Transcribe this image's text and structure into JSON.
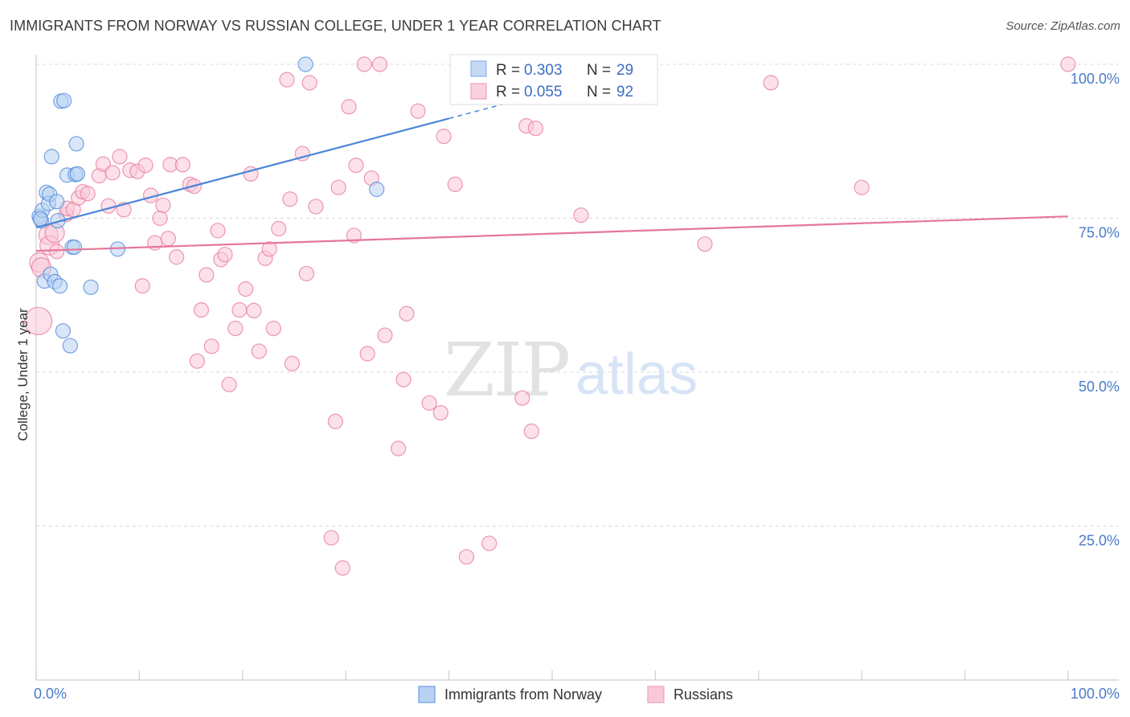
{
  "header": {
    "title": "IMMIGRANTS FROM NORWAY VS RUSSIAN COLLEGE, UNDER 1 YEAR CORRELATION CHART",
    "source": "Source: ZipAtlas.com"
  },
  "watermark": {
    "zip": "ZIP",
    "atlas": "atlas"
  },
  "legend": {
    "r_label": "R =",
    "n_label": "N =",
    "series": [
      {
        "r": "0.303",
        "n": "29",
        "color": "#8fb3e8",
        "fill": "#c5d9f5"
      },
      {
        "r": "0.055",
        "n": "92",
        "color": "#f0a0bb",
        "fill": "#fbd0de"
      }
    ]
  },
  "chart_data": {
    "type": "scatter",
    "title": "IMMIGRANTS FROM NORWAY VS RUSSIAN COLLEGE, UNDER 1 YEAR CORRELATION CHART",
    "xlabel": "",
    "ylabel": "College, Under 1 year",
    "xlim": [
      0,
      100
    ],
    "ylim": [
      0,
      100
    ],
    "x_tick_labels": [
      "0.0%",
      "100.0%"
    ],
    "y_tick_labels": [
      "100.0%",
      "75.0%",
      "50.0%",
      "25.0%"
    ],
    "y_ticks": [
      100,
      75,
      50,
      25
    ],
    "grid": true,
    "legend_position": "top-center",
    "series": [
      {
        "name": "Immigrants from Norway",
        "color": "#4a86d8",
        "fill": "#b8d1f3",
        "trend": {
          "x0": 0,
          "y0": 73.5,
          "x1": 40,
          "y1": 91.2,
          "dash_to_x": 47,
          "dash_to_y": 94.3
        },
        "points": [
          [
            0.3,
            75.3
          ],
          [
            0.5,
            74.6
          ],
          [
            0.6,
            76.3
          ],
          [
            0.8,
            64.8
          ],
          [
            1.0,
            79.2
          ],
          [
            1.2,
            77.4
          ],
          [
            1.3,
            78.9
          ],
          [
            1.4,
            65.9
          ],
          [
            1.5,
            85.0
          ],
          [
            1.8,
            64.7
          ],
          [
            2.0,
            77.7
          ],
          [
            2.1,
            74.6
          ],
          [
            2.3,
            64.0
          ],
          [
            2.4,
            94.0
          ],
          [
            2.7,
            94.1
          ],
          [
            2.6,
            56.7
          ],
          [
            3.0,
            82.0
          ],
          [
            3.3,
            54.3
          ],
          [
            3.5,
            70.3
          ],
          [
            3.7,
            70.3
          ],
          [
            3.8,
            82.1
          ],
          [
            3.9,
            87.1
          ],
          [
            4.0,
            82.2
          ],
          [
            5.3,
            63.8
          ],
          [
            7.9,
            70.0
          ],
          [
            26.1,
            100.0
          ],
          [
            33.0,
            79.7
          ],
          [
            47.0,
            100.0
          ],
          [
            0.4,
            74.9
          ]
        ]
      },
      {
        "name": "Russians",
        "color": "#e5779b",
        "fill": "#f9c9d8",
        "trend": {
          "x0": 0,
          "y0": 69.7,
          "x1": 100,
          "y1": 75.3
        },
        "points": [
          [
            0.2,
            58.3
          ],
          [
            0.3,
            67.8
          ],
          [
            1.2,
            72.3
          ],
          [
            1.3,
            70.6
          ],
          [
            2.0,
            69.6
          ],
          [
            2.9,
            75.6
          ],
          [
            3.0,
            76.6
          ],
          [
            3.6,
            76.4
          ],
          [
            4.1,
            78.3
          ],
          [
            4.5,
            79.3
          ],
          [
            5.0,
            79.0
          ],
          [
            6.1,
            81.9
          ],
          [
            6.5,
            83.8
          ],
          [
            7.0,
            77.0
          ],
          [
            7.4,
            82.4
          ],
          [
            8.1,
            85.0
          ],
          [
            8.5,
            76.4
          ],
          [
            9.1,
            82.8
          ],
          [
            9.8,
            82.6
          ],
          [
            10.3,
            64.0
          ],
          [
            10.6,
            83.6
          ],
          [
            11.1,
            78.7
          ],
          [
            11.5,
            71.0
          ],
          [
            12.0,
            75.0
          ],
          [
            12.3,
            77.1
          ],
          [
            12.8,
            71.7
          ],
          [
            13.0,
            83.7
          ],
          [
            13.6,
            68.7
          ],
          [
            14.2,
            83.7
          ],
          [
            14.9,
            80.5
          ],
          [
            15.3,
            80.2
          ],
          [
            15.6,
            51.8
          ],
          [
            16.0,
            60.1
          ],
          [
            16.5,
            65.8
          ],
          [
            17.0,
            54.2
          ],
          [
            17.6,
            73.0
          ],
          [
            17.9,
            68.3
          ],
          [
            18.3,
            69.1
          ],
          [
            18.7,
            48.0
          ],
          [
            19.3,
            57.1
          ],
          [
            19.7,
            60.1
          ],
          [
            20.3,
            63.5
          ],
          [
            20.8,
            82.2
          ],
          [
            21.1,
            60.0
          ],
          [
            21.6,
            53.4
          ],
          [
            22.2,
            68.5
          ],
          [
            22.6,
            70.0
          ],
          [
            23.0,
            57.1
          ],
          [
            23.5,
            73.3
          ],
          [
            24.3,
            97.5
          ],
          [
            24.6,
            78.1
          ],
          [
            24.8,
            51.4
          ],
          [
            25.8,
            85.5
          ],
          [
            26.2,
            66.0
          ],
          [
            26.5,
            97.0
          ],
          [
            27.1,
            76.9
          ],
          [
            28.6,
            23.1
          ],
          [
            29.0,
            42.0
          ],
          [
            29.3,
            80.0
          ],
          [
            29.7,
            18.2
          ],
          [
            30.3,
            93.1
          ],
          [
            30.8,
            72.2
          ],
          [
            31.0,
            83.6
          ],
          [
            31.8,
            100.0
          ],
          [
            32.1,
            53.0
          ],
          [
            32.5,
            81.5
          ],
          [
            33.3,
            100.0
          ],
          [
            33.8,
            56.0
          ],
          [
            35.1,
            37.6
          ],
          [
            35.6,
            48.8
          ],
          [
            35.9,
            59.5
          ],
          [
            37.0,
            92.4
          ],
          [
            38.1,
            45.0
          ],
          [
            39.2,
            43.4
          ],
          [
            39.5,
            88.3
          ],
          [
            40.6,
            80.5
          ],
          [
            41.7,
            20.0
          ],
          [
            43.9,
            22.2
          ],
          [
            45.8,
            100.0
          ],
          [
            47.1,
            45.8
          ],
          [
            47.5,
            90.0
          ],
          [
            48.0,
            40.4
          ],
          [
            48.4,
            89.6
          ],
          [
            52.3,
            100.0
          ],
          [
            52.8,
            75.5
          ],
          [
            55.9,
            100.0
          ],
          [
            64.8,
            70.8
          ],
          [
            71.2,
            97.0
          ],
          [
            80.0,
            80.0
          ],
          [
            100.0,
            100.0
          ],
          [
            0.5,
            67.0
          ],
          [
            1.8,
            72.6
          ]
        ]
      }
    ]
  },
  "bottom_legend": {
    "items": [
      {
        "label": "Immigrants from Norway",
        "fill": "#b8d1f3",
        "stroke": "#6e9be0"
      },
      {
        "label": "Russians",
        "fill": "#f9c9d8",
        "stroke": "#eea2bd"
      }
    ]
  }
}
